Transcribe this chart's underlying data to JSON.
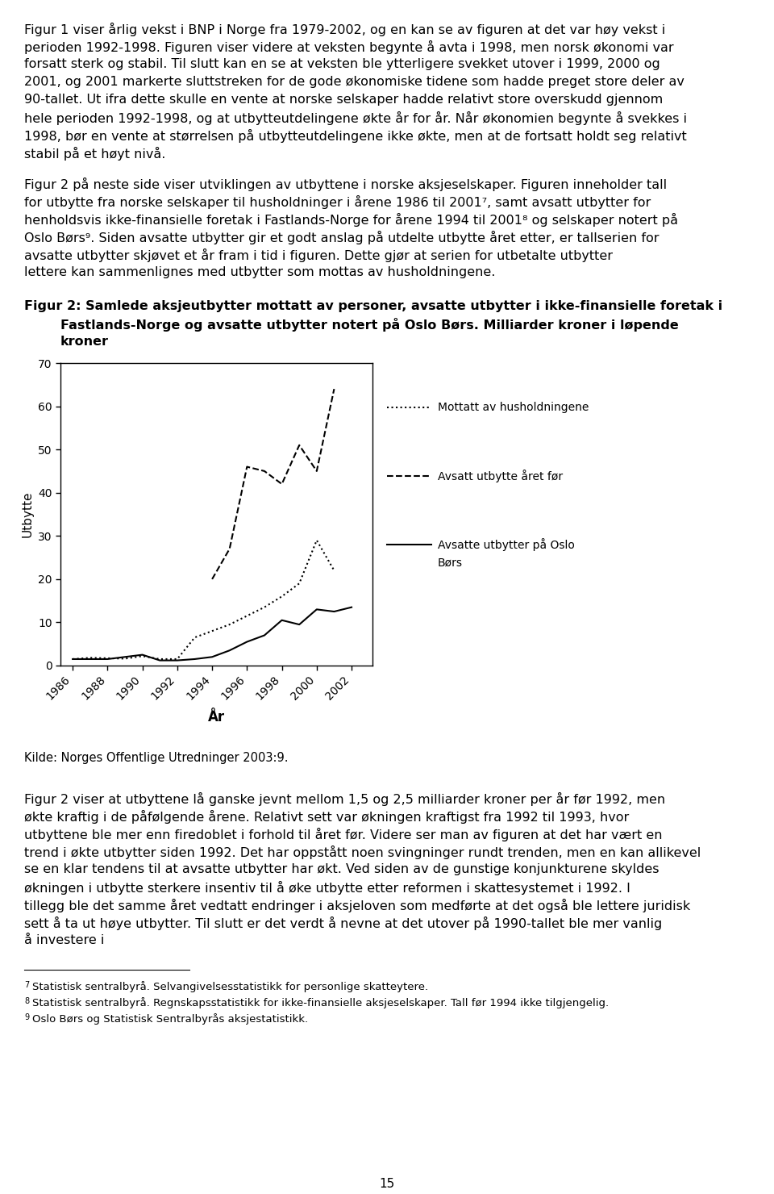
{
  "title_line1": "Figur 2: Samlede aksjeutbytter mottatt av personer, avsatte utbytter i ikke-finansielle foretak i",
  "title_line2": "Fastlands-Norge og avsatte utbytter notert på Oslo Børs. Milliarder kroner i løpende",
  "title_line3": "kroner",
  "ylabel": "Utbytte",
  "xlabel": "År",
  "source": "Kilde: Norges Offentlige Utredninger 2003:9.",
  "page_number": "15",
  "para1": "Figur 1 viser årlig vekst i BNP i Norge fra 1979-2002, og en kan se av figuren at det var høy vekst i perioden 1992-1998. Figuren viser videre at veksten begynte å avta i 1998, men norsk økonomi var forsatt sterk og stabil. Til slutt kan en se at veksten ble ytterligere svekket utover i 1999, 2000 og 2001, og 2001 markerte sluttstreken for de gode økonomiske tidene som hadde preget store deler av 90-tallet. Ut ifra dette skulle en vente at norske selskaper hadde relativt store overskudd gjennom hele perioden 1992-1998, og at utbytteutdelingene økte år for år. Når økonomien begynte å svekkes i 1998, bør en vente at størrelsen på utbytteutdelingene ikke økte, men at de fortsatt holdt seg relativt stabil på et høyt nivå.",
  "para2": "Figur 2 på neste side viser utviklingen av utbyttene i norske aksjeselskaper. Figuren inneholder tall for utbytte fra norske selskaper til husholdninger i årene 1986 til 2001⁷, samt avsatt utbytter for henholdsvis ikke-finansielle foretak i Fastlands-Norge for årene 1994 til 2001⁸ og selskaper notert på Oslo Børs⁹. Siden avsatte utbytter gir et godt anslag på utdelte utbytte året etter, er tallserien for avsatte utbytter skjøvet et år fram i tid i figuren. Dette gjør at serien for utbetalte utbytter lettere kan sammenlignes med utbytter som mottas av husholdningene.",
  "para3": "Figur 2 viser at utbyttene lå ganske jevnt mellom 1,5 og 2,5 milliarder kroner per år før 1992, men økte kraftig i de påfølgende årene. Relativt sett var økningen kraftigst fra 1992 til 1993, hvor utbyttene ble mer enn firedoblet i forhold til året før. Videre ser man av figuren at det har vært en trend i økte utbytter siden 1992. Det har oppstått noen svingninger rundt trenden, men en kan allikevel se en klar tendens til at avsatte utbytter har økt. Ved siden av de gunstige konjunkturene skyldes økningen i utbytte sterkere insentiv til å øke utbytte etter reformen i skattesystemet i 1992. I tillegg ble det samme året vedtatt endringer i aksjeloven som medførte at det også ble lettere juridisk sett å ta ut høye utbytter. Til slutt er det verdt å nevne at det utover på 1990-tallet ble mer vanlig å investere i",
  "footnote7": "Statistisk sentralbyrå. Selvangivelsesstatistikk for personlige skatteytere.",
  "footnote8": "Statistisk sentralbyrå. Regnskapsstatistikk for ikke-finansielle aksjeselskaper. Tall før 1994 ikke tilgjengelig.",
  "footnote9": "Oslo Børs og Statistisk Sentralbyrås aksjestatistikk.",
  "mottatt_years": [
    1986,
    1987,
    1988,
    1989,
    1990,
    1991,
    1992,
    1993,
    1994,
    1995,
    1996,
    1997,
    1998,
    1999,
    2000,
    2001
  ],
  "mottatt_values": [
    1.5,
    1.8,
    1.7,
    1.6,
    2.2,
    1.5,
    1.5,
    6.5,
    8.0,
    9.5,
    11.5,
    13.5,
    16.0,
    19.0,
    29.0,
    22.0
  ],
  "ff_years": [
    1994,
    1995,
    1996,
    1997,
    1998,
    1999,
    2000,
    2001
  ],
  "ff_values": [
    20.0,
    27.0,
    46.0,
    45.0,
    42.0,
    51.0,
    45.0,
    64.0
  ],
  "oslo_years": [
    1986,
    1987,
    1988,
    1989,
    1990,
    1991,
    1992,
    1993,
    1994,
    1995,
    1996,
    1997,
    1998,
    1999,
    2000,
    2001,
    2002
  ],
  "oslo_values": [
    1.5,
    1.5,
    1.5,
    2.0,
    2.5,
    1.2,
    1.2,
    1.5,
    2.0,
    3.5,
    5.5,
    7.0,
    10.5,
    9.5,
    13.0,
    12.5,
    13.5
  ],
  "ylim": [
    0,
    70
  ],
  "yticks": [
    0,
    10,
    20,
    30,
    40,
    50,
    60,
    70
  ],
  "xtick_years": [
    1986,
    1988,
    1990,
    1992,
    1994,
    1996,
    1998,
    2000,
    2002
  ],
  "legend_dotted": "Mottatt av husholdningene",
  "legend_dashed": "Avsatt utbytte året før",
  "legend_solid_1": "Avsatte utbytter på Oslo",
  "legend_solid_2": "Børs",
  "bg_color": "#ffffff",
  "text_color": "#000000",
  "body_fs": 11.5,
  "title_fs": 11.5,
  "axis_fs": 10,
  "label_fs": 11,
  "fn_fs": 9.5,
  "legend_fs": 10
}
